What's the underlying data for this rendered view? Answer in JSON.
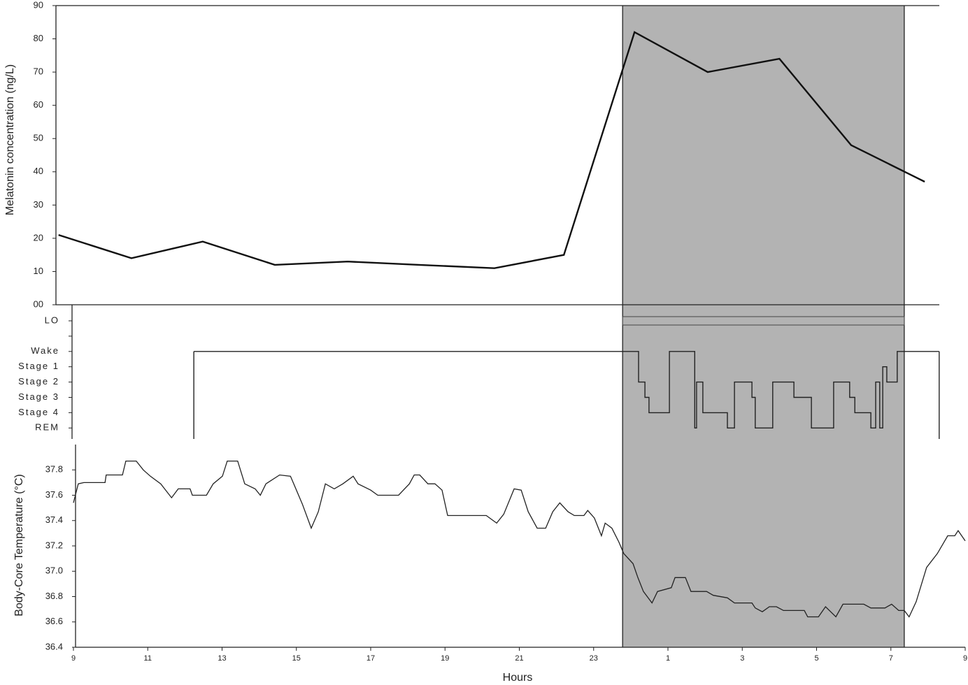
{
  "chart_data": [
    {
      "type": "line",
      "ylabel": "Melatonin concentration (ng/L)",
      "color": "#111111",
      "x": [
        8.6,
        10.56,
        12.48,
        14.42,
        16.38,
        18.3,
        20.33,
        22.2,
        24.1,
        26.07,
        28.0,
        29.93,
        31.91
      ],
      "values": [
        21,
        14,
        19,
        12,
        13,
        12,
        11,
        15,
        82,
        70,
        74,
        48,
        37
      ],
      "xlim": [
        9,
        33
      ],
      "ylim": [
        0,
        90
      ],
      "yticks": [
        {
          "value": 0,
          "label": "00"
        },
        10,
        20,
        30,
        40,
        50,
        60,
        70,
        80,
        90
      ],
      "shade": [
        23.78,
        31.36
      ]
    },
    {
      "type": "step",
      "color": "#222222",
      "ycategories": [
        "LO",
        null,
        "Wake",
        "Stage 1",
        "Stage 2",
        "Stage 3",
        "Stage 4",
        "REM"
      ],
      "x": [
        12.24,
        24.12,
        24.21,
        24.38,
        24.49,
        24.96,
        25.04,
        25.66,
        25.72,
        25.77,
        25.94,
        26.51,
        26.6,
        26.79,
        27.16,
        27.26,
        27.35,
        27.73,
        27.82,
        28.29,
        28.39,
        28.86,
        29.33,
        29.46,
        29.8,
        29.89,
        30.03,
        30.36,
        30.46,
        30.59,
        30.7,
        30.78,
        30.89,
        31.12,
        31.17,
        32.3
      ],
      "values": [
        "Wake",
        "Wake",
        "Stage 2",
        "Stage 3",
        "Stage 4",
        "Stage 4",
        "Wake",
        "Wake",
        "REM",
        "Stage 2",
        "Stage 4",
        "Stage 4",
        "REM",
        "Stage 2",
        "Stage 2",
        "Stage 3",
        "REM",
        "REM",
        "Stage 2",
        "Stage 2",
        "Stage 3",
        "REM",
        "REM",
        "Stage 2",
        "Stage 2",
        "Stage 3",
        "Stage 4",
        "Stage 4",
        "REM",
        "Stage 2",
        "REM",
        "Stage 1",
        "Stage 2",
        "Stage 2",
        "Wake",
        "Wake"
      ],
      "xlim": [
        9,
        33
      ],
      "lo_bar": [
        23.78,
        31.36
      ],
      "shade": [
        23.78,
        31.36
      ]
    },
    {
      "type": "line",
      "ylabel": "Body-Core Temperature (°C)",
      "xlabel": "Hours",
      "color": "#222222",
      "x": [
        9.0,
        9.13,
        9.28,
        9.85,
        9.88,
        10.32,
        10.41,
        10.69,
        10.88,
        11.07,
        11.35,
        11.64,
        11.82,
        12.14,
        12.2,
        12.58,
        12.76,
        13.01,
        13.14,
        13.42,
        13.61,
        13.89,
        14.03,
        14.18,
        14.55,
        14.84,
        14.93,
        15.16,
        15.4,
        15.59,
        15.78,
        16.02,
        16.25,
        16.53,
        16.66,
        17.0,
        17.19,
        17.75,
        18.04,
        18.17,
        18.32,
        18.54,
        18.73,
        18.92,
        19.07,
        20.11,
        20.39,
        20.58,
        20.86,
        21.05,
        21.24,
        21.48,
        21.71,
        21.9,
        22.09,
        22.31,
        22.48,
        22.74,
        22.84,
        23.02,
        23.21,
        23.31,
        23.49,
        23.68,
        23.81,
        24.06,
        24.19,
        24.34,
        24.57,
        24.72,
        25.09,
        25.19,
        25.47,
        25.62,
        26.04,
        26.22,
        26.6,
        26.79,
        27.26,
        27.35,
        27.54,
        27.73,
        27.92,
        28.11,
        28.67,
        28.76,
        29.05,
        29.24,
        29.52,
        29.71,
        30.27,
        30.46,
        30.84,
        31.02,
        31.21,
        31.36,
        31.49,
        31.68,
        31.96,
        32.25,
        32.53,
        32.72,
        32.81,
        33.0
      ],
      "values": [
        37.54,
        37.69,
        37.7,
        37.7,
        37.76,
        37.76,
        37.87,
        37.87,
        37.8,
        37.75,
        37.69,
        37.58,
        37.65,
        37.65,
        37.6,
        37.6,
        37.69,
        37.75,
        37.87,
        37.87,
        37.69,
        37.65,
        37.6,
        37.69,
        37.76,
        37.75,
        37.69,
        37.53,
        37.34,
        37.47,
        37.69,
        37.65,
        37.69,
        37.75,
        37.69,
        37.64,
        37.6,
        37.6,
        37.69,
        37.76,
        37.76,
        37.69,
        37.69,
        37.64,
        37.44,
        37.44,
        37.38,
        37.45,
        37.65,
        37.64,
        37.47,
        37.34,
        37.34,
        37.47,
        37.54,
        37.47,
        37.44,
        37.44,
        37.48,
        37.42,
        37.28,
        37.38,
        37.34,
        37.23,
        37.14,
        37.06,
        36.95,
        36.84,
        36.75,
        36.84,
        36.87,
        36.95,
        36.95,
        36.84,
        36.84,
        36.81,
        36.79,
        36.75,
        36.75,
        36.71,
        36.68,
        36.72,
        36.72,
        36.69,
        36.69,
        36.64,
        36.64,
        36.72,
        36.64,
        36.74,
        36.74,
        36.71,
        36.71,
        36.74,
        36.69,
        36.69,
        36.64,
        36.76,
        37.03,
        37.14,
        37.28,
        37.28,
        37.32,
        37.24
      ],
      "xlim": [
        9,
        33
      ],
      "ylim": [
        36.4,
        38.0
      ],
      "yticks": [
        36.4,
        36.6,
        36.8,
        {
          "value": 37,
          "label": "37.0"
        },
        37.2,
        37.4,
        37.6,
        37.8
      ],
      "xticks": [
        9,
        11,
        13,
        15,
        17,
        19,
        21,
        23,
        {
          "value": 25,
          "label": "1"
        },
        {
          "value": 27,
          "label": "3"
        },
        {
          "value": 29,
          "label": "5"
        },
        {
          "value": 31,
          "label": "7"
        },
        {
          "value": 33,
          "label": "9"
        }
      ],
      "shade": [
        23.78,
        31.36
      ]
    }
  ]
}
